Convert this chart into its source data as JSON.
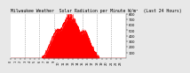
{
  "title": "Milwaukee Weather  Solar Radiation per Minute W/m²  (Last 24 Hours)",
  "background_color": "#e8e8e8",
  "plot_bg_color": "#ffffff",
  "bar_color": "#ff0000",
  "grid_color": "#888888",
  "ylim": [
    0,
    800
  ],
  "yticks": [
    100,
    200,
    300,
    400,
    500,
    600,
    700,
    800
  ],
  "title_fontsize": 3.5,
  "tick_fontsize": 2.8,
  "grid_hours": [
    3,
    6,
    9,
    12,
    15,
    18,
    21
  ]
}
